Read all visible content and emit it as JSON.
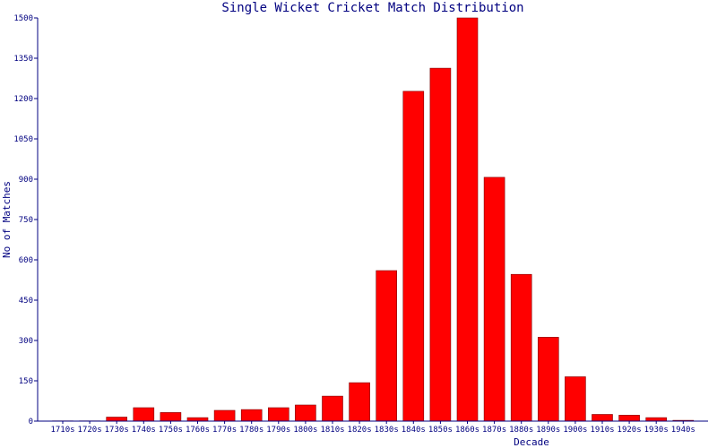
{
  "chart_data": {
    "type": "bar",
    "title": "Single Wicket Cricket Match Distribution",
    "xlabel": "Decade",
    "ylabel": "No of Matches",
    "ylim": [
      0,
      1500
    ],
    "yticks": [
      "0",
      "150",
      "300",
      "450",
      "600",
      "750",
      "900",
      "1050",
      "1200",
      "1350",
      "1500"
    ],
    "categories": [
      "1710s",
      "1720s",
      "1730s",
      "1740s",
      "1750s",
      "1760s",
      "1770s",
      "1780s",
      "1790s",
      "1800s",
      "1810s",
      "1820s",
      "1830s",
      "1840s",
      "1850s",
      "1860s",
      "1870s",
      "1880s",
      "1890s",
      "1900s",
      "1910s",
      "1920s",
      "1930s",
      "1940s"
    ],
    "values": [
      1,
      1,
      15,
      50,
      32,
      13,
      40,
      43,
      50,
      60,
      93,
      143,
      560,
      1227,
      1313,
      1500,
      907,
      546,
      312,
      165,
      25,
      22,
      13,
      3
    ],
    "grid": false,
    "legend": "none",
    "colors": {
      "bar_fill": "#ff0000",
      "bar_stroke": "#800000",
      "axis": "#000080",
      "text": "#000080"
    }
  }
}
